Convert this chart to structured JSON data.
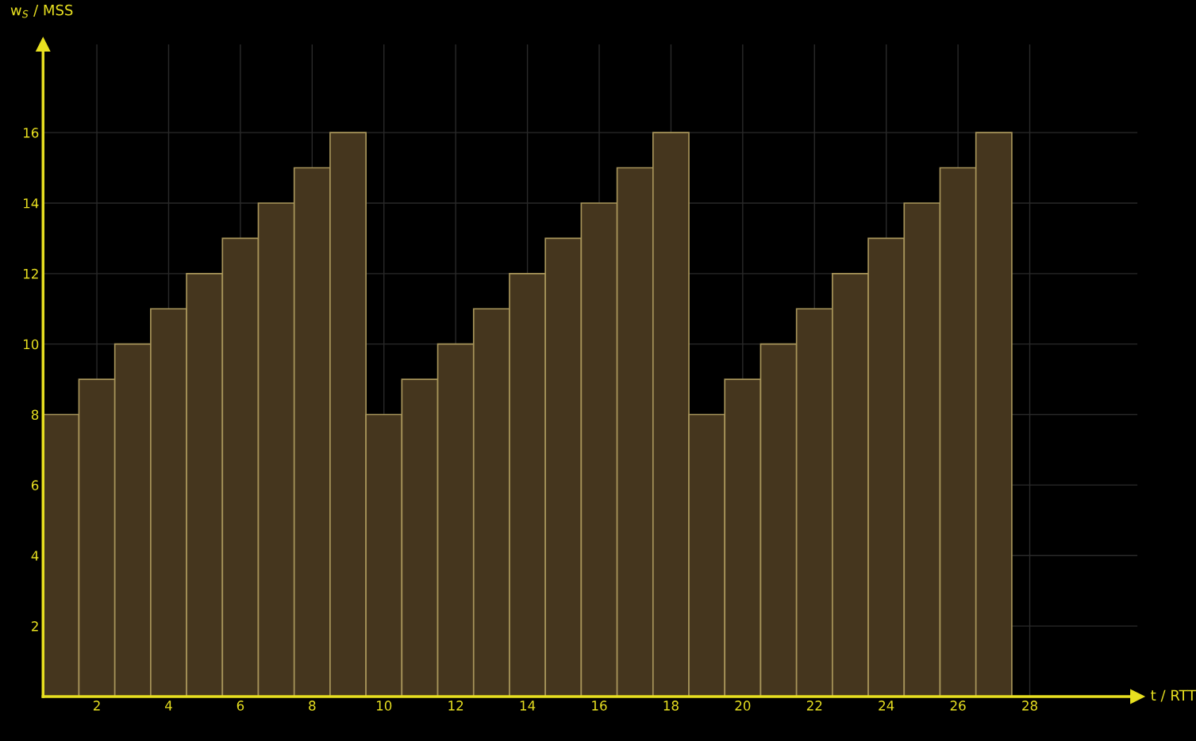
{
  "chart_data": {
    "type": "bar",
    "xlabel": "t / RTT",
    "ylabel": "w$_{S}$ / MSS",
    "x": [
      1,
      2,
      3,
      4,
      5,
      6,
      7,
      8,
      9,
      10,
      11,
      12,
      13,
      14,
      15,
      16,
      17,
      18,
      19,
      20,
      21,
      22,
      23,
      24,
      25,
      26,
      27
    ],
    "values": [
      8,
      9,
      10,
      11,
      12,
      13,
      14,
      15,
      16,
      8,
      9,
      10,
      11,
      12,
      13,
      14,
      15,
      16,
      8,
      9,
      10,
      11,
      12,
      13,
      14,
      15,
      16
    ],
    "color": "#45361e",
    "xlim": [
      0.5,
      31
    ],
    "xticks": [
      2,
      4,
      6,
      8,
      10,
      12,
      14,
      16,
      18,
      20,
      22,
      24,
      26,
      28
    ],
    "ylim": [
      0,
      18.5
    ],
    "yticks": [
      2,
      4,
      6,
      8,
      10,
      12,
      14,
      16
    ],
    "grid": true
  }
}
